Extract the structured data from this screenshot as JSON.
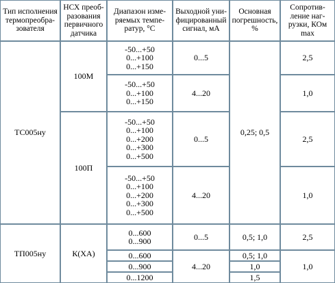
{
  "headers": {
    "type": "Тип исполнения\nтермопреобра-\nзователя",
    "nsh": "НСХ преоб-\nразования\nпервичного\nдатчика",
    "range": "Диапазон изме-\nряемых темпе-\nратур, °С",
    "signal": "Выходной уни-\nфицированный\nсигнал, мА",
    "error": "Основная\nпогрешность,\n%",
    "resistance": "Сопротив-\nление наг-\nрузки, КОм\nmax"
  },
  "tc": {
    "type": "ТС005ну",
    "nsh_100m": "100М",
    "nsh_100p": "100П",
    "range_r1": "-50...+50\n0...+100\n0...+150",
    "range_r2": "-50...+50\n0...+100\n0...+150",
    "range_r3": "-50...+50\n0...+100\n0...+200\n0...+300\n0...+500",
    "range_r4": "-50...+50\n0...+100\n0...+200\n0...+300\n0...+500",
    "signal_r1": "0...5",
    "signal_r2": "4...20",
    "signal_r3": "0...5",
    "signal_r4": "4...20",
    "error": "0,25; 0,5",
    "res_r1": "2,5",
    "res_r2": "1,0",
    "res_r3": "2,5",
    "res_r4": "1,0"
  },
  "tp": {
    "type": "ТП005ну",
    "nsh": "К(ХА)",
    "range_a": "0...600\n0...900",
    "range_b1": "0...600",
    "range_b2": "0...900",
    "range_b3": "0...1200",
    "signal_a": "0...5",
    "signal_b": "4...20",
    "error_a": "0,5; 1,0",
    "error_b1": "0,5; 1,0",
    "error_b2": "1,0",
    "error_b3": "1,5",
    "res_a": "2,5",
    "res_b": "1,0"
  }
}
